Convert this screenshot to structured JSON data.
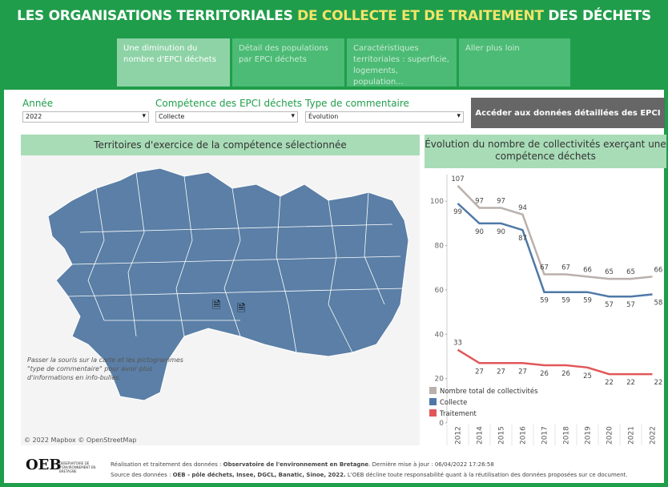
{
  "header": {
    "title_parts": [
      "LES ORGANISATIONS TERRITORIALES",
      "DE COLLECTE ET DE TRAITEMENT",
      "DES DÉCHETS"
    ]
  },
  "tabs": [
    "Une diminution du nombre d'EPCI déchets",
    "Détail des populations par EPCI déchets",
    "Caractéristiques territoriales : superficie, logements, population...",
    "Aller plus loin"
  ],
  "filters": [
    {
      "label": "Année",
      "value": "2022"
    },
    {
      "label": "Compétence des EPCI déchets",
      "value": "Collecte"
    },
    {
      "label": "Type de commentaire",
      "value": "Évolution"
    }
  ],
  "button": "Accéder aux données détaillées des EPCI",
  "map": {
    "title": "Territoires d'exercice de la compétence sélectionnée",
    "note": "Passer la souris sur la carte et les pictogrammes \"type de commentaire\" pour avoir plus d'informations en info-bulles.",
    "attribution": "© 2022 Mapbox © OpenStreetMap"
  },
  "chart_data": {
    "type": "line",
    "title": "Évolution du nombre de collectivités exerçant une compétence déchets",
    "categories": [
      "2012",
      "2014",
      "2015",
      "2016",
      "2017",
      "2018",
      "2019",
      "2020",
      "2021",
      "2022"
    ],
    "series": [
      {
        "name": "Nombre total de collectivités",
        "color": "#bab0ac",
        "values": [
          107,
          97,
          97,
          94,
          67,
          67,
          66,
          65,
          65,
          66
        ]
      },
      {
        "name": "Collecte",
        "color": "#4e79a7",
        "values": [
          99,
          90,
          90,
          87,
          59,
          59,
          59,
          57,
          57,
          58
        ]
      },
      {
        "name": "Traitement",
        "color": "#e15759",
        "values": [
          33,
          27,
          27,
          27,
          26,
          26,
          25,
          22,
          22,
          22
        ]
      }
    ],
    "ylim": [
      0,
      112
    ],
    "yticks": [
      0,
      20,
      40,
      60,
      80,
      100
    ],
    "legend": "bottom-left"
  },
  "footer": {
    "logo": "OEB",
    "logo_caption": "OBSERVATOIRE DE L'ENVIRONNEMENT EN BRETAGNE",
    "line1": [
      "Réalisation et traitement des données :",
      "Observatoire de l'environnement en Bretagne",
      ". Dernière mise à jour : 06/04/2022 17:26:58"
    ],
    "line2": [
      "Source des données :",
      "OEB - pôle déchets, Insee, DGCL, Banatic, Sinoe,  2022.",
      "L'OEB décline toute responsabilité quant à la réutilisation des données proposées sur ce document."
    ]
  }
}
